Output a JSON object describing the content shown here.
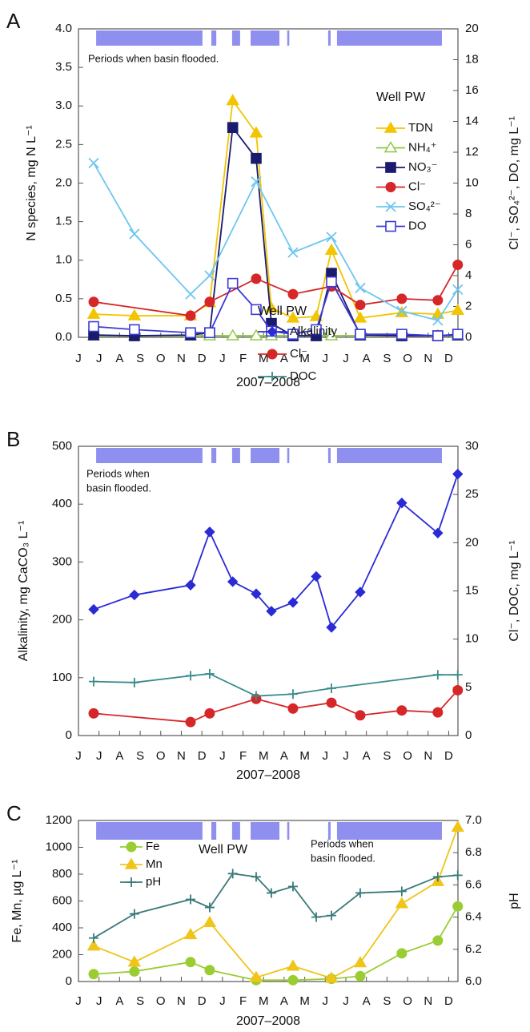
{
  "chart_data": [
    {
      "type": "line",
      "panel_label": "A",
      "y_label": "N species, mg N L⁻¹",
      "y2_label": "Cl⁻, SO₄²⁻, DO, mg L⁻¹",
      "x_label": "2007–2008",
      "annotation": [
        "Periods when basin flooded."
      ],
      "legend_title": "Well PW",
      "flooded_periods": [
        [
          0.86,
          6.03
        ],
        [
          6.46,
          6.7
        ],
        [
          7.47,
          7.86
        ],
        [
          8.37,
          9.77
        ],
        [
          10.15,
          10.25
        ],
        [
          12.14,
          12.26
        ],
        [
          12.57,
          17.67
        ]
      ],
      "flooded_color": "#8f8ff0",
      "xlim": [
        0,
        18.45
      ],
      "xticks": [
        {
          "value": 0,
          "label": "J"
        },
        {
          "value": 1,
          "label": "J"
        },
        {
          "value": 2,
          "label": "A"
        },
        {
          "value": 3,
          "label": "S"
        },
        {
          "value": 4,
          "label": "O"
        },
        {
          "value": 5,
          "label": "N"
        },
        {
          "value": 6,
          "label": "D"
        },
        {
          "value": 7,
          "label": "J"
        },
        {
          "value": 8,
          "label": "F"
        },
        {
          "value": 9,
          "label": "M"
        },
        {
          "value": 10,
          "label": "A"
        },
        {
          "value": 11,
          "label": "M"
        },
        {
          "value": 12,
          "label": "J"
        },
        {
          "value": 13,
          "label": "J"
        },
        {
          "value": 14,
          "label": "A"
        },
        {
          "value": 15,
          "label": "S"
        },
        {
          "value": 16,
          "label": "O"
        },
        {
          "value": 17,
          "label": "N"
        },
        {
          "value": 18,
          "label": "D"
        }
      ],
      "ylim": [
        0,
        4
      ],
      "yticks": [
        {
          "value": 0,
          "label": "0.0"
        },
        {
          "value": 0.5,
          "label": "0.5"
        },
        {
          "value": 1,
          "label": "1.0"
        },
        {
          "value": 1.5,
          "label": "1.5"
        },
        {
          "value": 2,
          "label": "2.0"
        },
        {
          "value": 2.5,
          "label": "2.5"
        },
        {
          "value": 3,
          "label": "3.0"
        },
        {
          "value": 3.5,
          "label": "3.5"
        },
        {
          "value": 4,
          "label": "4.0"
        }
      ],
      "y2lim": [
        0,
        20
      ],
      "y2ticks": [
        0,
        2,
        4,
        6,
        8,
        10,
        12,
        14,
        16,
        18,
        20
      ],
      "series": [
        {
          "name": "TDN",
          "color": "#f2c500",
          "marker": "triangle",
          "x": [
            0.74,
            2.72,
            5.45,
            6.38,
            7.5,
            8.64,
            9.38,
            10.43,
            11.56,
            12.3,
            13.7,
            15.72,
            17.47,
            18.44
          ],
          "values": [
            0.3,
            0.28,
            0.28,
            0.45,
            3.07,
            2.65,
            0.38,
            0.25,
            0.27,
            1.13,
            0.25,
            0.32,
            0.3,
            0.35
          ]
        },
        {
          "name": "NH₄⁺",
          "color": "#8cc63f",
          "marker": "triangle-open",
          "x": [
            0.74,
            2.72,
            5.45,
            6.38,
            7.5,
            8.64,
            9.38,
            10.43,
            11.56,
            12.3,
            13.7,
            15.72,
            17.47,
            18.44
          ],
          "values": [
            0.02,
            0.02,
            0.02,
            0.02,
            0.02,
            0.02,
            0.02,
            0.02,
            0.02,
            0.02,
            0.02,
            0.02,
            0.02,
            0.02
          ]
        },
        {
          "name": "NO₃⁻",
          "color": "#1a1a6e",
          "marker": "square",
          "x": [
            0.74,
            2.72,
            5.45,
            6.38,
            7.5,
            8.64,
            9.38,
            10.43,
            11.56,
            12.3,
            13.7,
            15.72,
            17.47,
            18.44
          ],
          "values": [
            0.03,
            0.02,
            0.03,
            0.06,
            2.72,
            2.32,
            0.18,
            0.02,
            0.02,
            0.83,
            0.03,
            0.02,
            0.02,
            0.03
          ]
        },
        {
          "name": "Cl⁻",
          "color": "#d62728",
          "marker": "circle",
          "axis": "y2",
          "x": [
            0.74,
            5.45,
            6.38,
            8.64,
            10.43,
            12.3,
            13.7,
            15.72,
            17.47,
            18.44
          ],
          "values": [
            2.3,
            1.4,
            2.3,
            3.8,
            2.8,
            3.3,
            2.1,
            2.5,
            2.4,
            4.7
          ]
        },
        {
          "name": "SO₄²⁻",
          "color": "#6ec6f0",
          "marker": "x",
          "axis": "y2",
          "x": [
            0.74,
            2.72,
            5.45,
            6.38,
            8.64,
            10.43,
            12.3,
            13.7,
            15.72,
            17.47,
            18.44
          ],
          "values": [
            11.3,
            6.7,
            2.8,
            4.0,
            10.1,
            5.5,
            6.5,
            3.2,
            1.7,
            1.1,
            3.1
          ]
        },
        {
          "name": "DO",
          "color": "#3b3bd6",
          "marker": "square-open",
          "axis": "y2",
          "x": [
            0.74,
            2.72,
            5.45,
            6.38,
            7.5,
            8.64,
            9.38,
            10.43,
            11.56,
            12.3,
            13.7,
            15.72,
            17.47,
            18.44
          ],
          "values": [
            0.7,
            0.5,
            0.3,
            0.3,
            3.5,
            1.8,
            0.4,
            0.2,
            0.5,
            3.6,
            0.2,
            0.2,
            0.1,
            0.2
          ]
        }
      ]
    },
    {
      "type": "line",
      "panel_label": "B",
      "y_label": "Alkalinity, mg CaCO₃ L⁻¹",
      "y2_label": "Cl⁻, DOC, mg L⁻¹",
      "x_label": "2007–2008",
      "annotation": [
        "Periods when",
        "basin flooded."
      ],
      "legend_title": "Well PW",
      "flooded_periods": [
        [
          0.86,
          6.03
        ],
        [
          6.46,
          6.7
        ],
        [
          7.47,
          7.86
        ],
        [
          8.37,
          9.77
        ],
        [
          10.15,
          10.25
        ],
        [
          12.14,
          12.26
        ],
        [
          12.57,
          17.67
        ]
      ],
      "flooded_color": "#8f8ff0",
      "xlim": [
        0,
        18.45
      ],
      "xticks": [
        {
          "value": 0,
          "label": "J"
        },
        {
          "value": 1,
          "label": "J"
        },
        {
          "value": 2,
          "label": "A"
        },
        {
          "value": 3,
          "label": "S"
        },
        {
          "value": 4,
          "label": "O"
        },
        {
          "value": 5,
          "label": "N"
        },
        {
          "value": 6,
          "label": "D"
        },
        {
          "value": 7,
          "label": "J"
        },
        {
          "value": 8,
          "label": "F"
        },
        {
          "value": 9,
          "label": "M"
        },
        {
          "value": 10,
          "label": "A"
        },
        {
          "value": 11,
          "label": "M"
        },
        {
          "value": 12,
          "label": "J"
        },
        {
          "value": 13,
          "label": "J"
        },
        {
          "value": 14,
          "label": "A"
        },
        {
          "value": 15,
          "label": "S"
        },
        {
          "value": 16,
          "label": "O"
        },
        {
          "value": 17,
          "label": "N"
        },
        {
          "value": 18,
          "label": "D"
        }
      ],
      "ylim": [
        0,
        500
      ],
      "yticks": [
        0,
        100,
        200,
        300,
        400,
        500
      ],
      "y2lim": [
        0,
        30
      ],
      "y2ticks": [
        0,
        5,
        10,
        15,
        20,
        25,
        30
      ],
      "series": [
        {
          "name": "Alkalinity",
          "color": "#2b2bd6",
          "marker": "diamond",
          "x": [
            0.74,
            2.72,
            5.45,
            6.38,
            7.5,
            8.64,
            9.38,
            10.43,
            11.56,
            12.3,
            13.7,
            15.72,
            17.47,
            18.44
          ],
          "values": [
            218,
            243,
            260,
            352,
            266,
            245,
            215,
            230,
            275,
            187,
            248,
            402,
            350,
            452
          ]
        },
        {
          "name": "Cl⁻",
          "color": "#d62728",
          "marker": "circle",
          "axis": "y2",
          "x": [
            0.74,
            5.45,
            6.38,
            8.64,
            10.43,
            12.3,
            13.7,
            15.72,
            17.47,
            18.44
          ],
          "values": [
            2.3,
            1.4,
            2.3,
            3.8,
            2.8,
            3.4,
            2.1,
            2.6,
            2.4,
            4.7
          ]
        },
        {
          "name": "DOC",
          "color": "#3a8a8a",
          "marker": "plus",
          "axis": "y2",
          "x": [
            0.74,
            2.72,
            5.45,
            6.38,
            8.64,
            10.43,
            12.3,
            17.47,
            18.44
          ],
          "values": [
            5.6,
            5.5,
            6.2,
            6.4,
            4.1,
            4.3,
            4.9,
            6.3,
            6.3
          ]
        }
      ]
    },
    {
      "type": "line",
      "panel_label": "C",
      "y_label": "Fe, Mn, µg L⁻¹",
      "y2_label": "pH",
      "x_label": "2007–2008",
      "annotation": [
        "Periods when",
        "basin flooded."
      ],
      "legend_title": "Well PW",
      "flooded_periods": [
        [
          0.86,
          6.03
        ],
        [
          6.46,
          6.7
        ],
        [
          7.47,
          7.86
        ],
        [
          8.37,
          9.77
        ],
        [
          10.15,
          10.25
        ],
        [
          12.14,
          12.26
        ],
        [
          12.57,
          17.67
        ]
      ],
      "flooded_color": "#8f8ff0",
      "xlim": [
        0,
        18.45
      ],
      "xticks": [
        {
          "value": 0,
          "label": "J"
        },
        {
          "value": 1,
          "label": "J"
        },
        {
          "value": 2,
          "label": "A"
        },
        {
          "value": 3,
          "label": "S"
        },
        {
          "value": 4,
          "label": "O"
        },
        {
          "value": 5,
          "label": "N"
        },
        {
          "value": 6,
          "label": "D"
        },
        {
          "value": 7,
          "label": "J"
        },
        {
          "value": 8,
          "label": "F"
        },
        {
          "value": 9,
          "label": "M"
        },
        {
          "value": 10,
          "label": "A"
        },
        {
          "value": 11,
          "label": "M"
        },
        {
          "value": 12,
          "label": "J"
        },
        {
          "value": 13,
          "label": "J"
        },
        {
          "value": 14,
          "label": "A"
        },
        {
          "value": 15,
          "label": "S"
        },
        {
          "value": 16,
          "label": "O"
        },
        {
          "value": 17,
          "label": "N"
        },
        {
          "value": 18,
          "label": "D"
        }
      ],
      "ylim": [
        0,
        1200
      ],
      "yticks": [
        0,
        200,
        400,
        600,
        800,
        1000,
        1200
      ],
      "y2lim": [
        6,
        7
      ],
      "y2ticks": [
        {
          "value": 6,
          "label": "6.0"
        },
        {
          "value": 6.2,
          "label": "6.2"
        },
        {
          "value": 6.4,
          "label": "6.4"
        },
        {
          "value": 6.6,
          "label": "6.6"
        },
        {
          "value": 6.8,
          "label": "6.8"
        },
        {
          "value": 7,
          "label": "7.0"
        }
      ],
      "series": [
        {
          "name": "Fe",
          "color": "#9acd32",
          "marker": "circle",
          "x": [
            0.74,
            2.72,
            5.45,
            6.38,
            8.64,
            10.43,
            12.3,
            13.7,
            15.72,
            17.47,
            18.44
          ],
          "values": [
            55,
            75,
            145,
            85,
            10,
            10,
            20,
            40,
            210,
            305,
            560
          ]
        },
        {
          "name": "Mn",
          "color": "#f0c419",
          "marker": "triangle",
          "x": [
            0.74,
            2.72,
            5.45,
            6.38,
            8.64,
            10.43,
            12.3,
            13.7,
            15.72,
            17.47,
            18.44
          ],
          "values": [
            265,
            145,
            350,
            440,
            30,
            115,
            25,
            140,
            580,
            745,
            1150
          ]
        },
        {
          "name": "pH",
          "color": "#3a7a7a",
          "marker": "plus",
          "axis": "y2",
          "x": [
            0.74,
            2.72,
            5.45,
            6.38,
            7.5,
            8.64,
            9.38,
            10.43,
            11.56,
            12.3,
            13.7,
            15.72,
            17.47,
            18.44
          ],
          "values": [
            6.27,
            6.42,
            6.51,
            6.46,
            6.67,
            6.65,
            6.55,
            6.59,
            6.4,
            6.41,
            6.55,
            6.56,
            6.65,
            6.66
          ]
        }
      ]
    }
  ]
}
